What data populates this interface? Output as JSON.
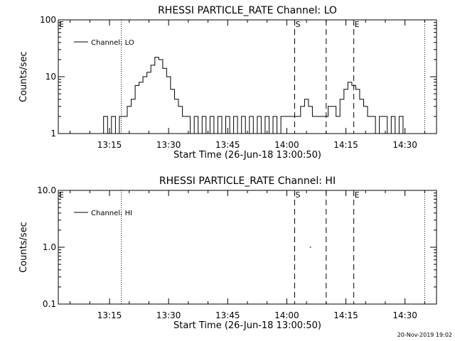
{
  "footer": {
    "timestamp": "20-Nov-2019 19:02"
  },
  "chart_data": [
    {
      "type": "line",
      "title": "RHESSI PARTICLE_RATE Channel: LO",
      "xlabel": "Start Time (26-Jun-18 13:00:50)",
      "ylabel": "Counts/sec",
      "yscale": "log",
      "ylim": [
        1,
        100
      ],
      "yticks": [
        {
          "v": 1,
          "label": "1"
        },
        {
          "v": 10,
          "label": "10"
        },
        {
          "v": 100,
          "label": "100"
        }
      ],
      "xlim": [
        "13:02",
        "14:38"
      ],
      "xticks": [
        "13:15",
        "13:30",
        "13:45",
        "14:00",
        "14:15",
        "14:30"
      ],
      "legend": {
        "label": "Channel: LO",
        "position": "top-left"
      },
      "markers": [
        {
          "label": "E",
          "time": "13:02"
        },
        {
          "label": "S",
          "time": "14:02"
        },
        {
          "label": "E",
          "time": "14:17"
        }
      ],
      "vlines_dotted": [
        "13:18",
        "14:35"
      ],
      "vlines_dashed": [
        "14:02",
        "14:10",
        "14:17"
      ],
      "series": [
        {
          "name": "Channel: LO",
          "x": [
            "13:05",
            "13:08",
            "13:11",
            "13:13",
            "13:14",
            "13:15",
            "13:16",
            "13:17",
            "13:18",
            "13:19",
            "13:20",
            "13:21",
            "13:22",
            "13:23",
            "13:24",
            "13:25",
            "13:26",
            "13:27",
            "13:28",
            "13:29",
            "13:30",
            "13:31",
            "13:32",
            "13:33",
            "13:34",
            "13:35",
            "13:36",
            "13:37",
            "13:38",
            "13:39",
            "13:40",
            "13:41",
            "13:42",
            "13:43",
            "13:44",
            "13:45",
            "13:46",
            "13:47",
            "13:48",
            "13:49",
            "13:50",
            "13:51",
            "13:52",
            "13:53",
            "13:54",
            "13:55",
            "13:56",
            "13:57",
            "13:58",
            "13:59",
            "14:00",
            "14:01",
            "14:02",
            "14:03",
            "14:04",
            "14:05",
            "14:06",
            "14:07",
            "14:08",
            "14:09",
            "14:10",
            "14:11",
            "14:12",
            "14:13",
            "14:14",
            "14:15",
            "14:16",
            "14:17",
            "14:18",
            "14:19",
            "14:20",
            "14:21",
            "14:22",
            "14:23",
            "14:24",
            "14:25",
            "14:26",
            "14:27",
            "14:28",
            "14:29",
            "14:30",
            "14:31"
          ],
          "y": [
            1,
            1,
            1,
            1,
            2,
            1,
            2,
            1,
            2,
            2,
            3,
            4,
            7,
            8,
            10,
            12,
            16,
            22,
            20,
            14,
            10,
            6,
            4,
            3,
            2,
            2,
            1,
            2,
            1,
            2,
            1,
            2,
            1,
            2,
            1,
            2,
            1,
            2,
            1,
            2,
            1,
            2,
            1,
            2,
            1,
            2,
            1,
            2,
            1,
            2,
            2,
            2,
            2,
            2,
            3,
            4,
            3,
            2,
            2,
            2,
            2,
            3,
            3,
            2,
            4,
            6,
            8,
            7,
            6,
            4,
            3,
            2,
            2,
            1,
            2,
            2,
            1,
            2,
            1,
            2,
            1,
            1
          ]
        }
      ]
    },
    {
      "type": "line",
      "title": "RHESSI PARTICLE_RATE Channel: HI",
      "xlabel": "Start Time (26-Jun-18 13:00:50)",
      "ylabel": "Counts/sec",
      "yscale": "log",
      "ylim": [
        0.1,
        10
      ],
      "yticks": [
        {
          "v": 0.1,
          "label": "0.1"
        },
        {
          "v": 1,
          "label": "1.0"
        },
        {
          "v": 10,
          "label": "10.0"
        }
      ],
      "xlim": [
        "13:02",
        "14:38"
      ],
      "xticks": [
        "13:15",
        "13:30",
        "13:45",
        "14:00",
        "14:15",
        "14:30"
      ],
      "legend": {
        "label": "Channel: HI",
        "position": "top-left"
      },
      "markers": [
        {
          "label": "E",
          "time": "13:02"
        },
        {
          "label": "S",
          "time": "14:02"
        },
        {
          "label": "E",
          "time": "14:17"
        }
      ],
      "vlines_dotted": [
        "13:18",
        "14:35"
      ],
      "vlines_dashed": [
        "14:02",
        "14:10",
        "14:17"
      ],
      "series": [
        {
          "name": "Channel: HI",
          "x": [
            "14:06"
          ],
          "y": [
            1
          ]
        }
      ]
    }
  ]
}
